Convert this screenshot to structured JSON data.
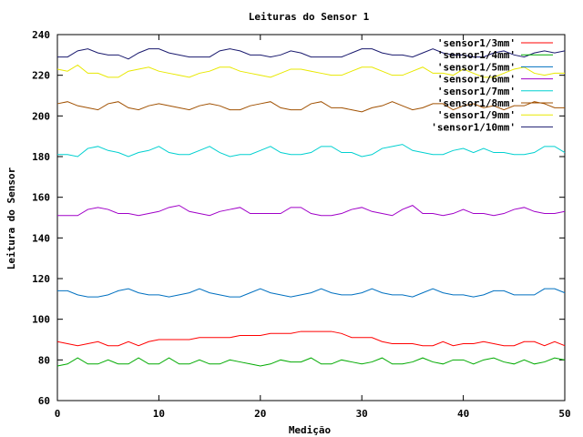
{
  "chart_data": {
    "type": "line",
    "title": "Leituras do Sensor 1",
    "xlabel": "Medição",
    "ylabel": "Leitura do Sensor",
    "xlim": [
      0,
      50
    ],
    "ylim": [
      60,
      240
    ],
    "xticks": [
      0,
      10,
      20,
      30,
      40,
      50
    ],
    "yticks": [
      60,
      80,
      100,
      120,
      140,
      160,
      180,
      200,
      220,
      240
    ],
    "grid": false,
    "legend_position": "top-right",
    "x": [
      0,
      1,
      2,
      3,
      4,
      5,
      6,
      7,
      8,
      9,
      10,
      11,
      12,
      13,
      14,
      15,
      16,
      17,
      18,
      19,
      20,
      21,
      22,
      23,
      24,
      25,
      26,
      27,
      28,
      29,
      30,
      31,
      32,
      33,
      34,
      35,
      36,
      37,
      38,
      39,
      40,
      41,
      42,
      43,
      44,
      45,
      46,
      47,
      48,
      49,
      50
    ],
    "series": [
      {
        "name": "'sensor1/3mm'",
        "color": "#ff0000",
        "values": [
          89,
          88,
          87,
          88,
          89,
          87,
          87,
          89,
          87,
          89,
          90,
          90,
          90,
          90,
          91,
          91,
          91,
          91,
          92,
          92,
          92,
          93,
          93,
          93,
          94,
          94,
          94,
          94,
          93,
          91,
          91,
          91,
          89,
          88,
          88,
          88,
          87,
          87,
          89,
          87,
          88,
          88,
          89,
          88,
          87,
          87,
          89,
          89,
          87,
          89,
          87
        ]
      },
      {
        "name": "'sensor1/4mm'",
        "color": "#00aa00",
        "values": [
          77,
          78,
          81,
          78,
          78,
          80,
          78,
          78,
          81,
          78,
          78,
          81,
          78,
          78,
          80,
          78,
          78,
          80,
          79,
          78,
          77,
          78,
          80,
          79,
          79,
          81,
          78,
          78,
          80,
          79,
          78,
          79,
          81,
          78,
          78,
          79,
          81,
          79,
          78,
          80,
          80,
          78,
          80,
          81,
          79,
          78,
          80,
          78,
          79,
          81,
          80
        ]
      },
      {
        "name": "'sensor1/5mm'",
        "color": "#0070c0",
        "values": [
          114,
          114,
          112,
          111,
          111,
          112,
          114,
          115,
          113,
          112,
          112,
          111,
          112,
          113,
          115,
          113,
          112,
          111,
          111,
          113,
          115,
          113,
          112,
          111,
          112,
          113,
          115,
          113,
          112,
          112,
          113,
          115,
          113,
          112,
          112,
          111,
          113,
          115,
          113,
          112,
          112,
          111,
          112,
          114,
          114,
          112,
          112,
          112,
          115,
          115,
          113
        ]
      },
      {
        "name": "'sensor1/6mm'",
        "color": "#a000c8",
        "values": [
          151,
          151,
          151,
          154,
          155,
          154,
          152,
          152,
          151,
          152,
          153,
          155,
          156,
          153,
          152,
          151,
          153,
          154,
          155,
          152,
          152,
          152,
          152,
          155,
          155,
          152,
          151,
          151,
          152,
          154,
          155,
          153,
          152,
          151,
          154,
          156,
          152,
          152,
          151,
          152,
          154,
          152,
          152,
          151,
          152,
          154,
          155,
          153,
          152,
          152,
          153
        ]
      },
      {
        "name": "'sensor1/7mm'",
        "color": "#00d0d0",
        "values": [
          181,
          181,
          180,
          184,
          185,
          183,
          182,
          180,
          182,
          183,
          185,
          182,
          181,
          181,
          183,
          185,
          182,
          180,
          181,
          181,
          183,
          185,
          182,
          181,
          181,
          182,
          185,
          185,
          182,
          182,
          180,
          181,
          184,
          185,
          186,
          183,
          182,
          181,
          181,
          183,
          184,
          182,
          184,
          182,
          182,
          181,
          181,
          182,
          185,
          185,
          182
        ]
      },
      {
        "name": "'sensor1/8mm'",
        "color": "#a05000",
        "values": [
          206,
          207,
          205,
          204,
          203,
          206,
          207,
          204,
          203,
          205,
          206,
          205,
          204,
          203,
          205,
          206,
          205,
          203,
          203,
          205,
          206,
          207,
          204,
          203,
          203,
          206,
          207,
          204,
          204,
          203,
          202,
          204,
          205,
          207,
          205,
          203,
          204,
          206,
          206,
          203,
          205,
          206,
          204,
          205,
          203,
          205,
          205,
          207,
          206,
          204,
          204
        ]
      },
      {
        "name": "'sensor1/9mm'",
        "color": "#e8e800",
        "values": [
          223,
          222,
          225,
          221,
          221,
          219,
          219,
          222,
          223,
          224,
          222,
          221,
          220,
          219,
          221,
          222,
          224,
          224,
          222,
          221,
          220,
          219,
          221,
          223,
          223,
          222,
          221,
          220,
          220,
          222,
          224,
          224,
          222,
          220,
          220,
          222,
          224,
          221,
          221,
          220,
          223,
          221,
          219,
          219,
          221,
          223,
          224,
          221,
          220,
          221,
          221
        ]
      },
      {
        "name": "'sensor1/10mm'",
        "color": "#1a1a6e",
        "values": [
          229,
          229,
          232,
          233,
          231,
          230,
          230,
          228,
          231,
          233,
          233,
          231,
          230,
          229,
          229,
          229,
          232,
          233,
          232,
          230,
          230,
          229,
          230,
          232,
          231,
          229,
          229,
          229,
          229,
          231,
          233,
          233,
          231,
          230,
          230,
          229,
          231,
          233,
          231,
          230,
          230,
          229,
          229,
          231,
          232,
          230,
          229,
          231,
          232,
          231,
          232
        ]
      }
    ]
  }
}
